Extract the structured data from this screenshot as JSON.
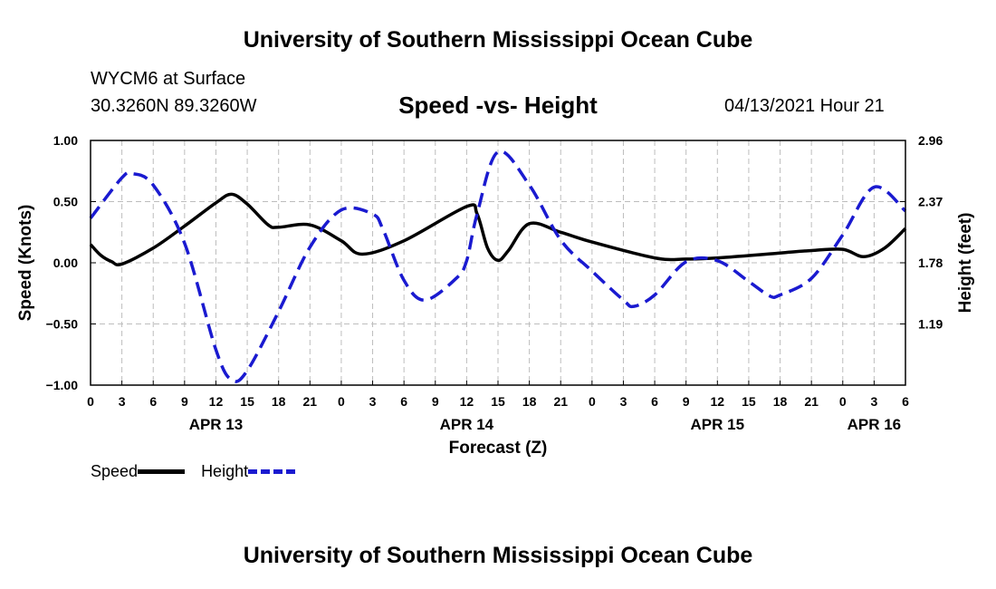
{
  "header": {
    "title": "University of Southern Mississippi Ocean Cube",
    "footer_title": "University of Southern Mississippi Ocean Cube",
    "station": "WYCM6 at Surface",
    "coords": "30.3260N  89.3260W",
    "timestamp": "04/13/2021 Hour 21"
  },
  "legend": {
    "speed": "Speed",
    "height": "Height"
  },
  "colors": {
    "speed": "#000000",
    "height": "#1a1ad0",
    "grid": "#bdbdbd"
  },
  "chart_data": {
    "type": "line",
    "title": "Speed -vs- Height",
    "xlabel": "Forecast (Z)",
    "ylabel": "Speed (Knots)",
    "ylabel_right": "Height (feet)",
    "xlim": [
      0,
      78
    ],
    "ylim": [
      -1.0,
      1.0
    ],
    "ylim_right": [
      0.6,
      2.96
    ],
    "grid": true,
    "legend_position": "bottom-left",
    "x_ticks": [
      {
        "x": 0,
        "label": "0"
      },
      {
        "x": 3,
        "label": "3"
      },
      {
        "x": 6,
        "label": "6"
      },
      {
        "x": 9,
        "label": "9"
      },
      {
        "x": 12,
        "label": "12"
      },
      {
        "x": 15,
        "label": "15"
      },
      {
        "x": 18,
        "label": "18"
      },
      {
        "x": 21,
        "label": "21"
      },
      {
        "x": 24,
        "label": "0"
      },
      {
        "x": 27,
        "label": "3"
      },
      {
        "x": 30,
        "label": "6"
      },
      {
        "x": 33,
        "label": "9"
      },
      {
        "x": 36,
        "label": "12"
      },
      {
        "x": 39,
        "label": "15"
      },
      {
        "x": 42,
        "label": "18"
      },
      {
        "x": 45,
        "label": "21"
      },
      {
        "x": 48,
        "label": "0"
      },
      {
        "x": 51,
        "label": "3"
      },
      {
        "x": 54,
        "label": "6"
      },
      {
        "x": 57,
        "label": "9"
      },
      {
        "x": 60,
        "label": "12"
      },
      {
        "x": 63,
        "label": "15"
      },
      {
        "x": 66,
        "label": "18"
      },
      {
        "x": 69,
        "label": "21"
      },
      {
        "x": 72,
        "label": "0"
      },
      {
        "x": 75,
        "label": "3"
      },
      {
        "x": 78,
        "label": "6"
      }
    ],
    "date_labels": [
      {
        "x": 12,
        "label": "APR 13"
      },
      {
        "x": 36,
        "label": "APR 14"
      },
      {
        "x": 60,
        "label": "APR 15"
      },
      {
        "x": 75,
        "label": "APR 16"
      }
    ],
    "y_ticks_left": [
      {
        "value": 1.0,
        "label": "1.00"
      },
      {
        "value": 0.5,
        "label": "0.50"
      },
      {
        "value": 0.0,
        "label": "0.00"
      },
      {
        "value": -0.5,
        "label": "-0.50"
      },
      {
        "value": -1.0,
        "label": "-1.00"
      }
    ],
    "y_ticks_right": [
      {
        "value": 2.96,
        "label": "2.96"
      },
      {
        "value": 2.37,
        "label": "2.37"
      },
      {
        "value": 1.78,
        "label": "1.78"
      },
      {
        "value": 1.19,
        "label": "1.19"
      }
    ],
    "series": [
      {
        "name": "Speed",
        "axis": "left",
        "style": "solid",
        "x": [
          0,
          1,
          2,
          3,
          6,
          9,
          12,
          13.5,
          15,
          17,
          18,
          21,
          24,
          26,
          30,
          36,
          37,
          38,
          39,
          40,
          42,
          45,
          48,
          54,
          57,
          60,
          66,
          69,
          72,
          74,
          76,
          78
        ],
        "values": [
          0.15,
          0.06,
          0.01,
          -0.01,
          0.12,
          0.3,
          0.49,
          0.56,
          0.48,
          0.31,
          0.29,
          0.31,
          0.18,
          0.07,
          0.18,
          0.46,
          0.4,
          0.12,
          0.02,
          0.1,
          0.32,
          0.25,
          0.17,
          0.04,
          0.03,
          0.04,
          0.08,
          0.1,
          0.11,
          0.05,
          0.12,
          0.28
        ]
      },
      {
        "name": "Height",
        "axis": "right",
        "style": "dashed",
        "x": [
          0,
          3,
          4,
          6,
          9,
          12,
          13.5,
          15,
          18,
          21,
          24,
          27,
          28,
          30,
          32,
          35,
          36,
          37,
          39,
          42,
          45,
          48,
          51,
          52,
          54,
          57,
          60,
          63,
          65,
          66,
          69,
          72,
          75,
          78
        ],
        "values": [
          2.21,
          2.6,
          2.64,
          2.53,
          1.97,
          0.94,
          0.65,
          0.74,
          1.31,
          1.93,
          2.29,
          2.25,
          2.1,
          1.61,
          1.42,
          1.63,
          1.8,
          2.25,
          2.85,
          2.53,
          2.0,
          1.7,
          1.42,
          1.36,
          1.47,
          1.79,
          1.8,
          1.6,
          1.46,
          1.47,
          1.63,
          2.05,
          2.51,
          2.28
        ]
      }
    ]
  }
}
